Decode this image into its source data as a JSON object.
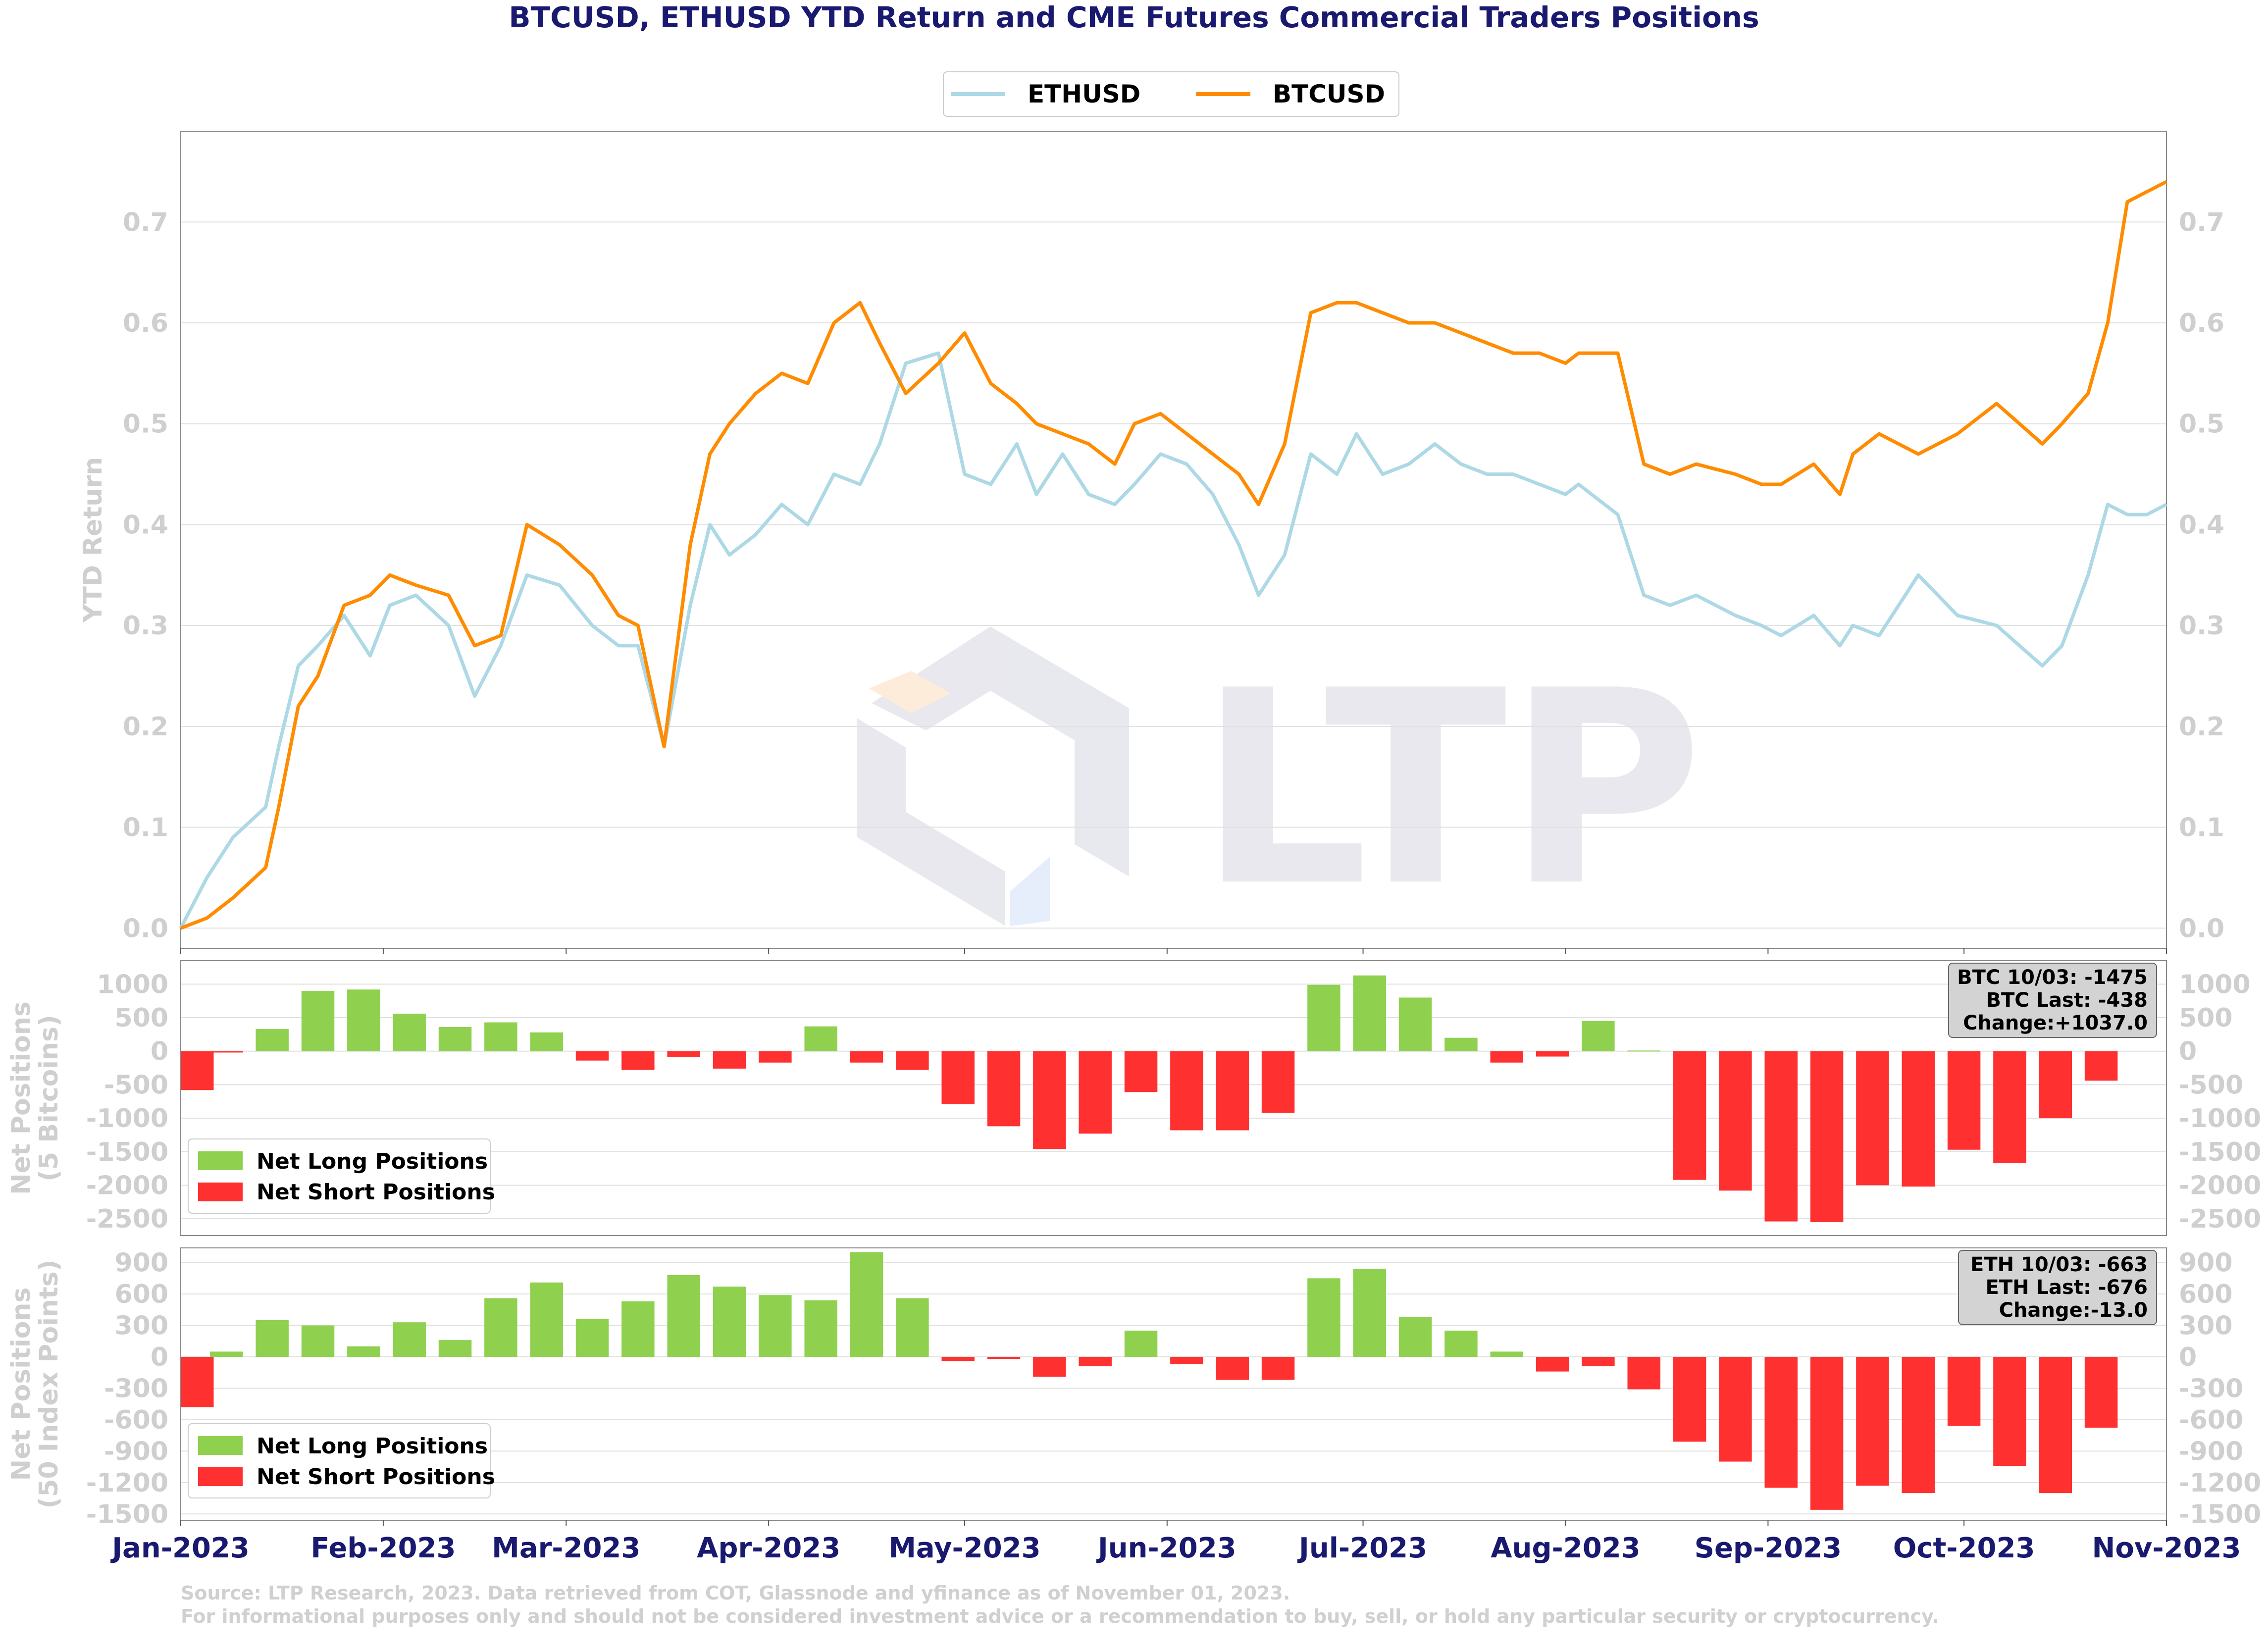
{
  "title": "BTCUSD, ETHUSD YTD Return and CME Futures Commercial Traders Positions",
  "watermark": "LTP",
  "colors": {
    "eth": "#add8e6",
    "btc": "#ff8c00",
    "long": "#8fd14f",
    "short": "#ff3030",
    "title": "#191970"
  },
  "chart_data": [
    {
      "type": "line",
      "title": "BTCUSD, ETHUSD YTD Return and CME Futures Commercial Traders Positions",
      "ylabel": "YTD Return",
      "ylim": [
        -0.02,
        0.79
      ],
      "yticks": [
        "0.0",
        "0.1",
        "0.2",
        "0.3",
        "0.4",
        "0.5",
        "0.6",
        "0.7"
      ],
      "legend": [
        "ETHUSD",
        "BTCUSD"
      ],
      "x_day_range": [
        0,
        304
      ],
      "series": [
        {
          "name": "ETHUSD",
          "x": [
            0,
            4,
            8,
            13,
            15,
            18,
            21,
            25,
            29,
            32,
            36,
            41,
            45,
            49,
            53,
            58,
            63,
            67,
            70,
            74,
            78,
            81,
            84,
            88,
            92,
            96,
            100,
            104,
            107,
            111,
            116,
            120,
            124,
            128,
            131,
            135,
            139,
            143,
            146,
            150,
            154,
            158,
            162,
            165,
            169,
            173,
            177,
            180,
            184,
            188,
            192,
            196,
            200,
            204,
            208,
            212,
            214,
            220,
            224,
            228,
            232,
            238,
            242,
            245,
            250,
            254,
            256,
            260,
            266,
            272,
            278,
            285,
            288,
            292,
            295,
            298,
            301,
            304
          ],
          "values": [
            0.0,
            0.05,
            0.09,
            0.12,
            0.18,
            0.26,
            0.28,
            0.31,
            0.27,
            0.32,
            0.33,
            0.3,
            0.23,
            0.28,
            0.35,
            0.34,
            0.3,
            0.28,
            0.28,
            0.18,
            0.32,
            0.4,
            0.37,
            0.39,
            0.42,
            0.4,
            0.45,
            0.44,
            0.48,
            0.56,
            0.57,
            0.45,
            0.44,
            0.48,
            0.43,
            0.47,
            0.43,
            0.42,
            0.44,
            0.47,
            0.46,
            0.43,
            0.38,
            0.33,
            0.37,
            0.47,
            0.45,
            0.49,
            0.45,
            0.46,
            0.48,
            0.46,
            0.45,
            0.45,
            0.44,
            0.43,
            0.44,
            0.41,
            0.33,
            0.32,
            0.33,
            0.31,
            0.3,
            0.29,
            0.31,
            0.28,
            0.3,
            0.29,
            0.35,
            0.31,
            0.3,
            0.26,
            0.28,
            0.35,
            0.42,
            0.41,
            0.41,
            0.42
          ]
        },
        {
          "name": "BTCUSD",
          "x": [
            0,
            4,
            8,
            13,
            15,
            18,
            21,
            25,
            29,
            32,
            36,
            41,
            45,
            49,
            53,
            58,
            63,
            67,
            70,
            74,
            78,
            81,
            84,
            88,
            92,
            96,
            100,
            104,
            107,
            111,
            116,
            120,
            124,
            128,
            131,
            135,
            139,
            143,
            146,
            150,
            154,
            158,
            162,
            165,
            169,
            173,
            177,
            180,
            184,
            188,
            192,
            196,
            200,
            204,
            208,
            212,
            214,
            220,
            224,
            228,
            232,
            238,
            242,
            245,
            250,
            254,
            256,
            260,
            266,
            272,
            278,
            285,
            288,
            292,
            295,
            298,
            301,
            304
          ],
          "values": [
            0.0,
            0.01,
            0.03,
            0.06,
            0.12,
            0.22,
            0.25,
            0.32,
            0.33,
            0.35,
            0.34,
            0.33,
            0.28,
            0.29,
            0.4,
            0.38,
            0.35,
            0.31,
            0.3,
            0.18,
            0.38,
            0.47,
            0.5,
            0.53,
            0.55,
            0.54,
            0.6,
            0.62,
            0.58,
            0.53,
            0.56,
            0.59,
            0.54,
            0.52,
            0.5,
            0.49,
            0.48,
            0.46,
            0.5,
            0.51,
            0.49,
            0.47,
            0.45,
            0.42,
            0.48,
            0.61,
            0.62,
            0.62,
            0.61,
            0.6,
            0.6,
            0.59,
            0.58,
            0.57,
            0.57,
            0.56,
            0.57,
            0.57,
            0.46,
            0.45,
            0.46,
            0.45,
            0.44,
            0.44,
            0.46,
            0.43,
            0.47,
            0.49,
            0.47,
            0.49,
            0.52,
            0.48,
            0.5,
            0.53,
            0.6,
            0.72,
            0.73,
            0.74
          ]
        }
      ]
    },
    {
      "type": "bar",
      "ylabel": "Net Positions\n(5 Bitcoins)",
      "ylim": [
        -2750,
        1350
      ],
      "yticks": [
        1000,
        500,
        0,
        -500,
        -1000,
        -1500,
        -2000,
        -2500
      ],
      "legend": [
        "Net Long Positions",
        "Net Short Positions"
      ],
      "annotation": [
        "BTC 10/03: -1475",
        "BTC Last: -438",
        "Change:+1037.0"
      ],
      "x": [
        0,
        7,
        14,
        21,
        28,
        35,
        42,
        49,
        56,
        63,
        70,
        77,
        84,
        91,
        98,
        105,
        112,
        119,
        126,
        133,
        140,
        147,
        154,
        161,
        168,
        175,
        182,
        189,
        196,
        203,
        210,
        217,
        224,
        231,
        238,
        245,
        252,
        259,
        266,
        273,
        280,
        287,
        294
      ],
      "values": [
        -580,
        -20,
        330,
        900,
        920,
        560,
        360,
        430,
        280,
        -140,
        -280,
        -90,
        -260,
        -170,
        370,
        -170,
        -280,
        -790,
        -1120,
        -1460,
        -1230,
        -610,
        -1180,
        -1180,
        -920,
        990,
        1130,
        800,
        200,
        -170,
        -80,
        450,
        10,
        -1920,
        -2080,
        -2540,
        -2550,
        -2000,
        -2020,
        -1470,
        -1670,
        -1000,
        -440
      ]
    },
    {
      "type": "bar",
      "ylabel": "Net Positions\n(50 Index Points)",
      "ylim": [
        -1560,
        1040
      ],
      "yticks": [
        900,
        600,
        300,
        0,
        -300,
        -600,
        -900,
        -1200,
        -1500
      ],
      "legend": [
        "Net Long Positions",
        "Net Short Positions"
      ],
      "annotation": [
        "ETH 10/03: -663",
        "ETH Last: -676",
        "Change:-13.0"
      ],
      "x": [
        0,
        7,
        14,
        21,
        28,
        35,
        42,
        49,
        56,
        63,
        70,
        77,
        84,
        91,
        98,
        105,
        112,
        119,
        126,
        133,
        140,
        147,
        154,
        161,
        168,
        175,
        182,
        189,
        196,
        203,
        210,
        217,
        224,
        231,
        238,
        245,
        252,
        259,
        266,
        273,
        280,
        287,
        294
      ],
      "values": [
        -480,
        50,
        350,
        300,
        100,
        330,
        160,
        560,
        710,
        360,
        530,
        780,
        670,
        590,
        540,
        1000,
        560,
        -40,
        -20,
        -190,
        -90,
        250,
        -70,
        -220,
        -220,
        750,
        840,
        380,
        250,
        50,
        -140,
        -90,
        -310,
        -810,
        -1000,
        -1250,
        -1460,
        -1230,
        -1300,
        -660,
        -1040,
        -1300,
        -676
      ]
    }
  ],
  "x_axis": {
    "ticks": [
      {
        "label": "Jan-2023",
        "day": 0
      },
      {
        "label": "Feb-2023",
        "day": 31
      },
      {
        "label": "Mar-2023",
        "day": 59
      },
      {
        "label": "Apr-2023",
        "day": 90
      },
      {
        "label": "May-2023",
        "day": 120
      },
      {
        "label": "Jun-2023",
        "day": 151
      },
      {
        "label": "Jul-2023",
        "day": 181
      },
      {
        "label": "Aug-2023",
        "day": 212
      },
      {
        "label": "Sep-2023",
        "day": 243
      },
      {
        "label": "Oct-2023",
        "day": 273
      },
      {
        "label": "Nov-2023",
        "day": 304
      }
    ]
  },
  "source": {
    "line1": "Source: LTP Research, 2023. Data retrieved from COT, Glassnode and yfinance as of November 01, 2023.",
    "line2": "For informational purposes only and should not be considered investment advice or a recommendation to buy, sell, or hold any particular security or cryptocurrency."
  }
}
